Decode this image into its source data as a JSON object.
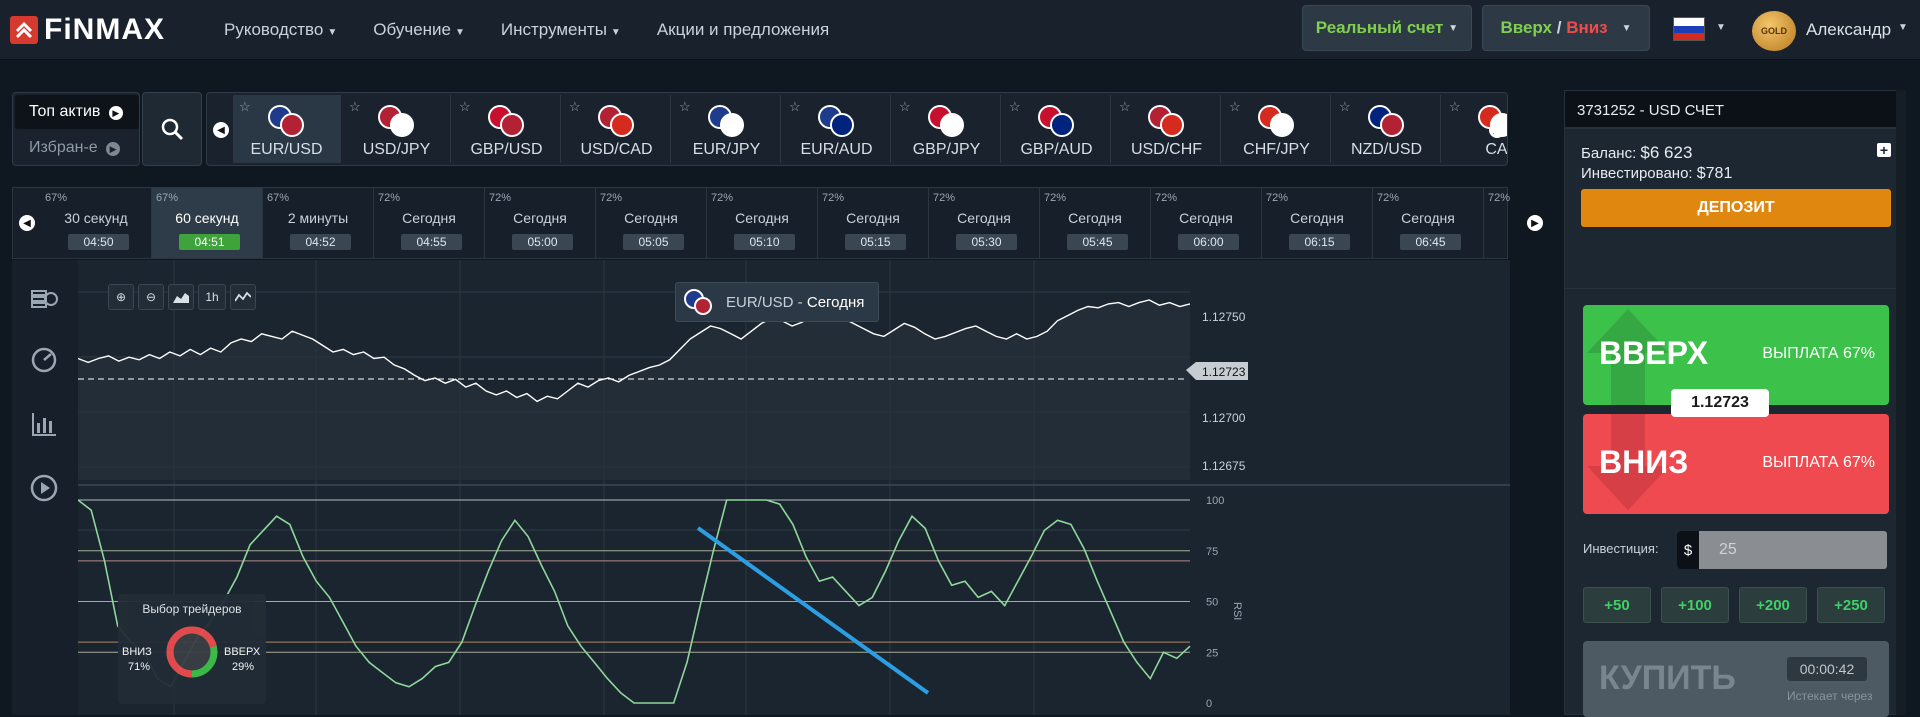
{
  "brand": {
    "name": "FiNMAX",
    "accent": "#d63a2f"
  },
  "nav": {
    "items": [
      "Руководство",
      "Обучение",
      "Инструменты",
      "Акции и предложения"
    ],
    "dropdown_flags": [
      true,
      true,
      true,
      false
    ]
  },
  "header": {
    "account_type": "Реальный счет",
    "direction_up": "Вверх",
    "direction_sep": " / ",
    "direction_down": "Вниз",
    "user_name": "Александр",
    "badge": "GOLD"
  },
  "assets_panel": {
    "top_label": "Топ актив",
    "fav_label": "Избран-е",
    "assets": [
      {
        "label": "EUR/USD",
        "active": true,
        "c1": "#1f3c8c",
        "c2": "#b22234"
      },
      {
        "label": "USD/JPY",
        "active": false,
        "c1": "#b22234",
        "c2": "#ffffff"
      },
      {
        "label": "GBP/USD",
        "active": false,
        "c1": "#c8102e",
        "c2": "#b22234"
      },
      {
        "label": "USD/CAD",
        "active": false,
        "c1": "#b22234",
        "c2": "#d52b1e"
      },
      {
        "label": "EUR/JPY",
        "active": false,
        "c1": "#1f3c8c",
        "c2": "#ffffff"
      },
      {
        "label": "EUR/AUD",
        "active": false,
        "c1": "#1f3c8c",
        "c2": "#00247d"
      },
      {
        "label": "GBP/JPY",
        "active": false,
        "c1": "#c8102e",
        "c2": "#ffffff"
      },
      {
        "label": "GBP/AUD",
        "active": false,
        "c1": "#c8102e",
        "c2": "#00247d"
      },
      {
        "label": "USD/CHF",
        "active": false,
        "c1": "#b22234",
        "c2": "#d52b1e"
      },
      {
        "label": "CHF/JPY",
        "active": false,
        "c1": "#d52b1e",
        "c2": "#ffffff"
      },
      {
        "label": "NZD/USD",
        "active": false,
        "c1": "#00247d",
        "c2": "#b22234"
      },
      {
        "label": "CA",
        "active": false,
        "c1": "#d52b1e",
        "c2": "#ffffff"
      }
    ]
  },
  "expiries": [
    {
      "pct": "67%",
      "name": "30 секунд",
      "time": "04:50",
      "active": false
    },
    {
      "pct": "67%",
      "name": "60 секунд",
      "time": "04:51",
      "active": true
    },
    {
      "pct": "67%",
      "name": "2 минуты",
      "time": "04:52",
      "active": false
    },
    {
      "pct": "72%",
      "name": "Сегодня",
      "time": "04:55",
      "active": false
    },
    {
      "pct": "72%",
      "name": "Сегодня",
      "time": "05:00",
      "active": false
    },
    {
      "pct": "72%",
      "name": "Сегодня",
      "time": "05:05",
      "active": false
    },
    {
      "pct": "72%",
      "name": "Сегодня",
      "time": "05:10",
      "active": false
    },
    {
      "pct": "72%",
      "name": "Сегодня",
      "time": "05:15",
      "active": false
    },
    {
      "pct": "72%",
      "name": "Сегодня",
      "time": "05:30",
      "active": false
    },
    {
      "pct": "72%",
      "name": "Сегодня",
      "time": "05:45",
      "active": false
    },
    {
      "pct": "72%",
      "name": "Сегодня",
      "time": "06:00",
      "active": false
    },
    {
      "pct": "72%",
      "name": "Сегодня",
      "time": "06:15",
      "active": false
    },
    {
      "pct": "72%",
      "name": "Сегодня",
      "time": "06:45",
      "active": false
    },
    {
      "pct": "72%",
      "name": "",
      "time": "",
      "active": false
    }
  ],
  "chart": {
    "title_pair": "EUR/USD",
    "title_sep": " - ",
    "title_period": "Сегодня",
    "tools": [
      "zoom-in",
      "zoom-out",
      "chart-type",
      "1h",
      "indicator"
    ],
    "timeframe": "1h",
    "price_ticks": [
      "1.12750",
      "1.12723",
      "1.12700",
      "1.12675"
    ],
    "current_price": "1.12723",
    "rsi_ticks": [
      "100",
      "75",
      "50",
      "25",
      "0"
    ],
    "rsi_label": "RSI",
    "traders": {
      "title": "Выбор трейдеров",
      "down_label": "ВНИЗ",
      "down_pct": "71%",
      "up_label": "ВВЕРХ",
      "up_pct": "29%",
      "down_value": 71,
      "up_value": 29
    }
  },
  "price_series": [
    0.55,
    0.52,
    0.55,
    0.57,
    0.53,
    0.56,
    0.54,
    0.58,
    0.55,
    0.6,
    0.57,
    0.62,
    0.58,
    0.63,
    0.6,
    0.67,
    0.7,
    0.68,
    0.74,
    0.72,
    0.7,
    0.76,
    0.73,
    0.7,
    0.65,
    0.6,
    0.62,
    0.58,
    0.6,
    0.55,
    0.56,
    0.5,
    0.47,
    0.42,
    0.38,
    0.4,
    0.36,
    0.39,
    0.33,
    0.36,
    0.3,
    0.27,
    0.3,
    0.25,
    0.28,
    0.22,
    0.26,
    0.24,
    0.3,
    0.36,
    0.33,
    0.38,
    0.4,
    0.37,
    0.42,
    0.45,
    0.48,
    0.5,
    0.54,
    0.62,
    0.7,
    0.75,
    0.8,
    0.78,
    0.74,
    0.7,
    0.76,
    0.82,
    0.86,
    0.84,
    0.8,
    0.83,
    0.88,
    0.92,
    0.9,
    0.86,
    0.82,
    0.78,
    0.74,
    0.72,
    0.77,
    0.82,
    0.79,
    0.74,
    0.7,
    0.72,
    0.75,
    0.78,
    0.8,
    0.76,
    0.72,
    0.7,
    0.74,
    0.7,
    0.72,
    0.76,
    0.84,
    0.88,
    0.92,
    0.95,
    0.94,
    0.97,
    0.98,
    0.95,
    0.98,
    1.0,
    0.96,
    0.98,
    0.95,
    0.97
  ],
  "rsi_series": [
    100,
    95,
    70,
    38,
    30,
    25,
    12,
    8,
    20,
    32,
    40,
    50,
    62,
    78,
    85,
    92,
    88,
    72,
    60,
    52,
    40,
    28,
    20,
    15,
    10,
    8,
    12,
    18,
    20,
    30,
    48,
    65,
    80,
    90,
    82,
    68,
    55,
    38,
    28,
    20,
    12,
    5,
    0,
    0,
    0,
    0,
    20,
    48,
    75,
    100,
    100,
    100,
    100,
    98,
    88,
    72,
    60,
    62,
    55,
    48,
    52,
    65,
    80,
    92,
    86,
    70,
    58,
    60,
    52,
    55,
    48,
    60,
    72,
    85,
    90,
    88,
    76,
    60,
    45,
    30,
    20,
    12,
    25,
    22,
    28
  ],
  "account": {
    "title": "3731252 - USD СЧЕТ",
    "balance_label": "Баланс:",
    "balance": "$6 623",
    "invested_label": "Инвестировано:",
    "invested": "$781",
    "deposit_label": "ДЕПОЗИТ"
  },
  "trade": {
    "up_label": "ВВЕРХ",
    "up_payout": "ВЫПЛАТА 67%",
    "down_label": "ВНИЗ",
    "down_payout": "ВЫПЛАТА 67%",
    "price": "1.12723",
    "investment_label": "Инвестиция:",
    "currency": "$",
    "investment_value": "25",
    "quick": [
      "+50",
      "+100",
      "+200",
      "+250"
    ],
    "buy_label": "КУПИТЬ",
    "timer": "00:00:42",
    "expires_label": "Истекает через"
  },
  "colors": {
    "up": "#3cc14a",
    "down": "#ee4a4f",
    "rsi_line": "#8fd79a",
    "trend_line": "#2b9ee4",
    "price_line": "#ffffff"
  }
}
